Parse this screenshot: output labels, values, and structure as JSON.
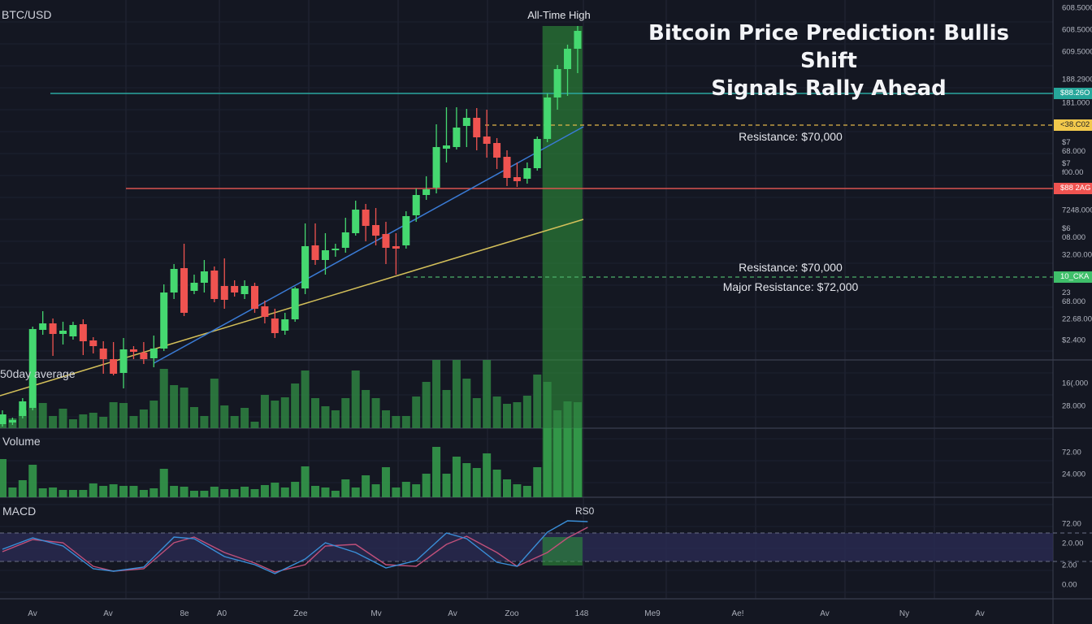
{
  "header": {
    "symbol": "BTC/USD",
    "title_line1": "Bitcoin Price Prediction: Bullis Shift",
    "title_line2": "Signals Rally Ahead"
  },
  "annotations": {
    "all_time_high": "All-Time High",
    "resistance_1": "Resistance: $70,000",
    "resistance_2": "Resistance: $70,000",
    "major_resistance": "Major Resistance: $72,000",
    "ma_label": "50day average",
    "volume_label": "Volume",
    "macd_label": "MACD",
    "rsi_label": "RS0"
  },
  "price_axis": [
    "608.5000",
    "608.5000",
    "609.5000",
    "188.2900",
    "181.000",
    "$7 68.000",
    "$7 f00.00",
    "7248.000",
    "$6 08.000",
    "32.00.000",
    "23 68.000",
    "22.68.000",
    "$2.400",
    "16(.000",
    "28.000",
    "72.00",
    "24.000",
    "72.00",
    "2.0.00",
    "2.00",
    "0.00"
  ],
  "price_tags": [
    {
      "text": "$88.26O",
      "color": "#26a69a"
    },
    {
      "text": "<38.C02",
      "color": "#f2c94c"
    },
    {
      "text": "$88 2AG",
      "color": "#ef5350"
    },
    {
      "text": "10_CKA",
      "color": "#3fbf6a"
    }
  ],
  "time_axis": [
    "Av",
    "Av",
    "8e",
    "A0",
    "Zee",
    "Mv",
    "Av",
    "Zoo",
    "148",
    "Me9",
    "Ae!",
    "Av",
    "Ny",
    "Av"
  ],
  "colors": {
    "up": "#45d870",
    "down": "#ef5350",
    "volume": "#2f8a44",
    "highlight": "#2f9a3c",
    "ma50": "#d4c05a",
    "trend": "#3a7bd5",
    "macd": "#3a8fd8",
    "signal": "#c0507a"
  },
  "chart_data": {
    "type": "candlestick",
    "ylim": [
      37300,
      90000
    ],
    "candles": [
      [
        37800,
        39500,
        37500,
        39000
      ],
      [
        38000,
        38600,
        37700,
        38300
      ],
      [
        38800,
        41000,
        38500,
        40600
      ],
      [
        39800,
        49800,
        39500,
        49500
      ],
      [
        49400,
        51700,
        48800,
        50200
      ],
      [
        50200,
        50800,
        46200,
        48900
      ],
      [
        48900,
        50400,
        47600,
        49300
      ],
      [
        48600,
        50400,
        48200,
        50000
      ],
      [
        50100,
        50700,
        46300,
        48000
      ],
      [
        48100,
        48500,
        46500,
        47400
      ],
      [
        47100,
        48000,
        44000,
        45800
      ],
      [
        45800,
        47900,
        43800,
        44000
      ],
      [
        44100,
        48400,
        42200,
        47000
      ],
      [
        47000,
        47400,
        45800,
        46700
      ],
      [
        46600,
        47900,
        45200,
        45800
      ],
      [
        45900,
        48700,
        44800,
        47100
      ],
      [
        47100,
        55000,
        46800,
        54000
      ],
      [
        54000,
        57500,
        53200,
        56900
      ],
      [
        57000,
        60000,
        51100,
        51500
      ],
      [
        54200,
        56200,
        53800,
        55200
      ],
      [
        55200,
        58000,
        54000,
        56600
      ],
      [
        56700,
        57200,
        52800,
        53200
      ],
      [
        54800,
        58200,
        52000,
        53100
      ],
      [
        54800,
        55500,
        53500,
        54000
      ],
      [
        53800,
        55500,
        53200,
        54800
      ],
      [
        54800,
        55200,
        51500,
        52000
      ],
      [
        52300,
        53000,
        50200,
        51000
      ],
      [
        50800,
        52000,
        48400,
        49000
      ],
      [
        49300,
        51500,
        48800,
        50700
      ],
      [
        50700,
        54700,
        50400,
        54500
      ],
      [
        54500,
        62500,
        53800,
        59700
      ],
      [
        59800,
        62500,
        57400,
        58000
      ],
      [
        58000,
        61300,
        56200,
        59200
      ],
      [
        59200,
        60000,
        58400,
        59400
      ],
      [
        59500,
        63200,
        58900,
        61400
      ],
      [
        61300,
        65300,
        61000,
        64200
      ],
      [
        64200,
        64900,
        60300,
        62200
      ],
      [
        62300,
        64400,
        59800,
        61000
      ],
      [
        61200,
        62700,
        57500,
        59500
      ],
      [
        59700,
        61300,
        56200,
        59400
      ],
      [
        59800,
        64000,
        59400,
        63400
      ],
      [
        63500,
        66800,
        62700,
        66000
      ],
      [
        66000,
        68300,
        65400,
        66700
      ],
      [
        66900,
        74700,
        66200,
        71900
      ],
      [
        71700,
        76800,
        70000,
        72100
      ],
      [
        71900,
        76800,
        71600,
        74300
      ],
      [
        74500,
        76600,
        71900,
        75500
      ],
      [
        75500,
        76700,
        71500,
        73100
      ],
      [
        73200,
        76500,
        70600,
        72300
      ],
      [
        72400,
        73000,
        69200,
        70600
      ],
      [
        70700,
        71500,
        67100,
        68100
      ],
      [
        68200,
        70000,
        67000,
        67700
      ],
      [
        68000,
        70000,
        67400,
        69300
      ],
      [
        69300,
        73200,
        69000,
        72900
      ],
      [
        72900,
        78500,
        72500,
        78000
      ],
      [
        78000,
        82000,
        76500,
        81500
      ],
      [
        81500,
        84500,
        78200,
        84000
      ],
      [
        84000,
        86800,
        81000,
        86200
      ]
    ],
    "candle_format": [
      "open",
      "high",
      "low",
      "close"
    ],
    "levels": {
      "all_time_high_line": 78500,
      "resistance_red": 66800,
      "resistance_dashed": 74600,
      "support_dashed": 55900
    },
    "ma50": {
      "start": 41300,
      "end": 63000
    },
    "trendline": {
      "start_index": 15,
      "start": 45300,
      "end": 74400
    },
    "volume_upper": [
      17,
      12,
      22,
      25,
      31,
      15,
      24,
      11,
      17,
      19,
      14,
      32,
      31,
      15,
      23,
      34,
      73,
      53,
      50,
      26,
      15,
      61,
      28,
      15,
      25,
      8,
      41,
      34,
      38,
      55,
      71,
      37,
      27,
      22,
      37,
      71,
      47,
      37,
      22,
      15,
      15,
      39,
      57,
      84,
      47,
      84,
      61,
      37,
      84,
      39,
      30,
      32,
      40,
      66,
      57,
      22,
      33,
      32
    ],
    "volume_lower": [
      47,
      12,
      21,
      40,
      11,
      12,
      9,
      9,
      9,
      17,
      14,
      16,
      14,
      14,
      9,
      11,
      35,
      14,
      13,
      8,
      8,
      13,
      10,
      10,
      13,
      10,
      15,
      18,
      12,
      19,
      38,
      14,
      12,
      8,
      22,
      12,
      27,
      16,
      37,
      12,
      19,
      16,
      29,
      62,
      29,
      50,
      42,
      36,
      54,
      34,
      22,
      16,
      14,
      37,
      85,
      85,
      85,
      85
    ],
    "macd": [
      [
        0,
        54
      ],
      [
        3,
        68
      ],
      [
        6,
        58
      ],
      [
        9,
        30
      ],
      [
        11,
        27
      ],
      [
        14,
        32
      ],
      [
        17,
        69
      ],
      [
        19,
        67
      ],
      [
        22,
        45
      ],
      [
        25,
        35
      ],
      [
        27,
        24
      ],
      [
        30,
        42
      ],
      [
        32,
        62
      ],
      [
        35,
        50
      ],
      [
        38,
        31
      ],
      [
        41,
        40
      ],
      [
        44,
        74
      ],
      [
        46,
        67
      ],
      [
        49,
        38
      ],
      [
        51,
        33
      ],
      [
        54,
        75
      ],
      [
        56,
        89
      ],
      [
        58,
        88
      ]
    ],
    "signal": [
      [
        0,
        51
      ],
      [
        3,
        66
      ],
      [
        6,
        62
      ],
      [
        9,
        33
      ],
      [
        11,
        27
      ],
      [
        14,
        30
      ],
      [
        17,
        62
      ],
      [
        19,
        69
      ],
      [
        22,
        50
      ],
      [
        25,
        37
      ],
      [
        27,
        26
      ],
      [
        30,
        35
      ],
      [
        32,
        58
      ],
      [
        35,
        60
      ],
      [
        38,
        35
      ],
      [
        41,
        33
      ],
      [
        44,
        60
      ],
      [
        46,
        70
      ],
      [
        49,
        50
      ],
      [
        51,
        33
      ],
      [
        54,
        50
      ],
      [
        56,
        68
      ],
      [
        58,
        81
      ]
    ],
    "macd_band": [
      39,
      74
    ],
    "highlight_index_range": [
      54,
      57
    ]
  }
}
